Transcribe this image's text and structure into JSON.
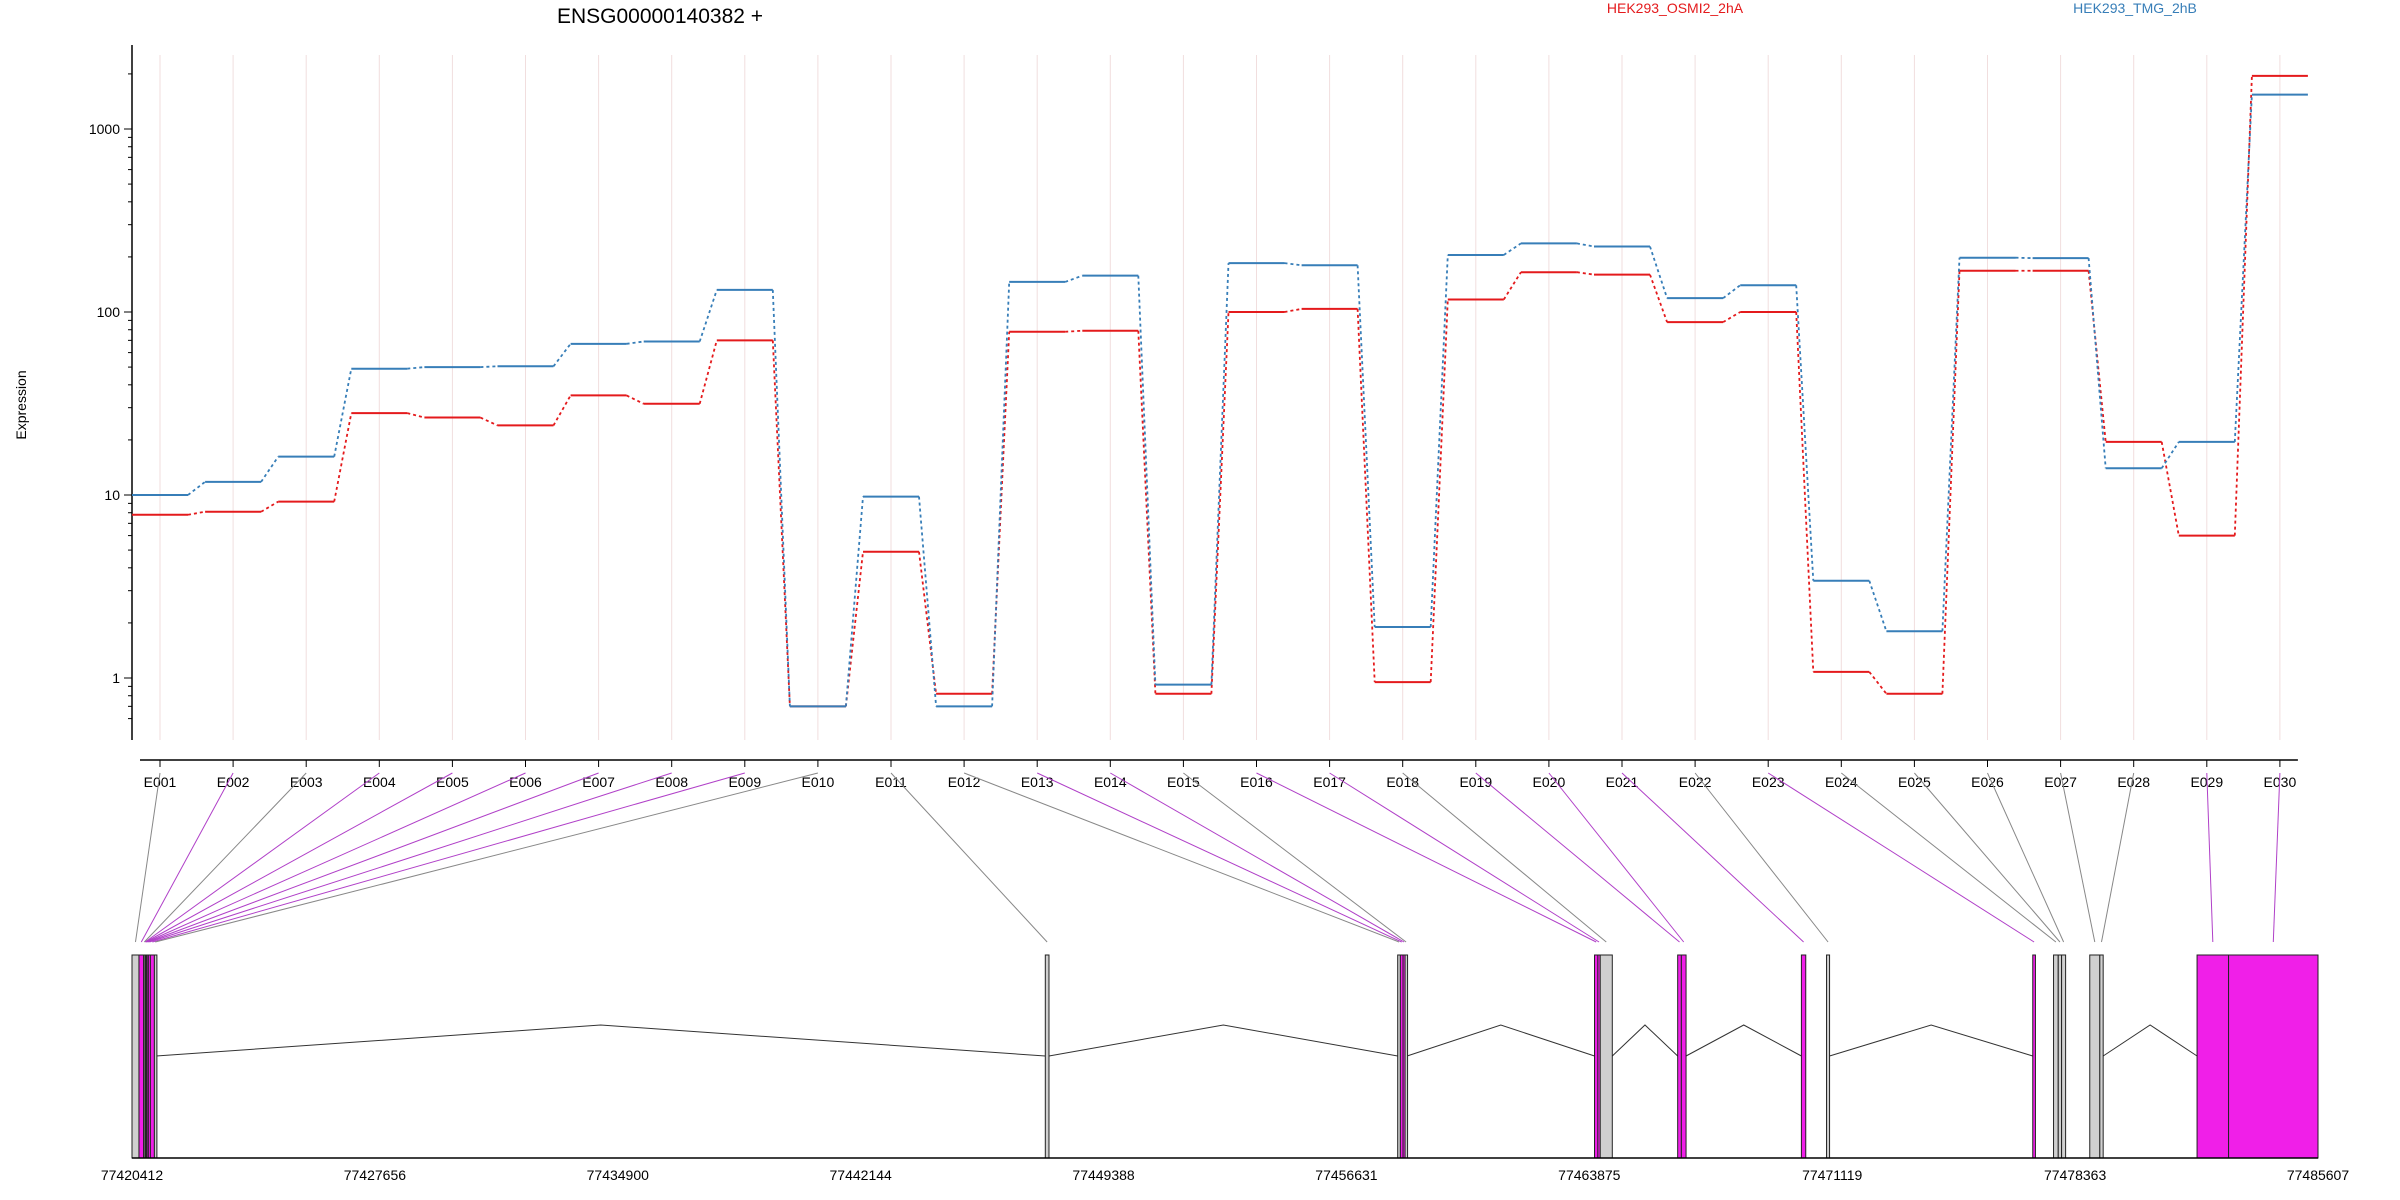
{
  "chart_data": {
    "type": "line",
    "title": "ENSG00000140382 +",
    "ylabel": "Expression",
    "yscale": "log",
    "ylim": [
      0.6,
      3000
    ],
    "yticks": [
      "1",
      "10",
      "100",
      "1000"
    ],
    "categories": [
      "E001",
      "E002",
      "E003",
      "E004",
      "E005",
      "E006",
      "E007",
      "E008",
      "E009",
      "E010",
      "E011",
      "E012",
      "E013",
      "E014",
      "E015",
      "E016",
      "E017",
      "E018",
      "E019",
      "E020",
      "E021",
      "E022",
      "E023",
      "E024",
      "E025",
      "E026",
      "E027",
      "E028",
      "E029",
      "E030"
    ],
    "series": [
      {
        "name": "HEK293_OSMI2_2hA",
        "color": "#e41a1c",
        "values": [
          7.8,
          8.1,
          9.2,
          28,
          26.5,
          24,
          35,
          31.5,
          70,
          0.7,
          4.9,
          0.82,
          78,
          79,
          0.82,
          100,
          104,
          0.95,
          117,
          165,
          160,
          88,
          100,
          1.08,
          0.82,
          168,
          168,
          19.5,
          6,
          1950
        ]
      },
      {
        "name": "HEK293_TMG_2hB",
        "color": "#377eb8",
        "values": [
          10,
          11.8,
          16.2,
          49,
          50,
          50.5,
          67,
          69,
          132,
          0.7,
          9.8,
          0.7,
          146,
          158,
          0.92,
          185,
          180,
          1.9,
          205,
          237,
          228,
          119,
          140,
          3.4,
          1.8,
          198,
          197,
          14,
          19.5,
          1540
        ]
      }
    ],
    "genomic_axis": {
      "range": [
        77420412,
        77485607
      ],
      "tick_labels": [
        "77420412",
        "77427656",
        "77434900",
        "77442144",
        "77449388",
        "77456631",
        "77463875",
        "77471119",
        "77478363",
        "77485607"
      ]
    },
    "exons": [
      {
        "id": "E001",
        "start": 77420412,
        "end": 77420620,
        "highlight": false
      },
      {
        "id": "E002",
        "start": 77420620,
        "end": 77420760,
        "highlight": true
      },
      {
        "id": "E003",
        "start": 77420760,
        "end": 77420800,
        "highlight": false
      },
      {
        "id": "E004",
        "start": 77420800,
        "end": 77420810,
        "highlight": true
      },
      {
        "id": "E005",
        "start": 77420810,
        "end": 77420830,
        "highlight": true
      },
      {
        "id": "E006",
        "start": 77420830,
        "end": 77420860,
        "highlight": true
      },
      {
        "id": "E007",
        "start": 77420860,
        "end": 77420900,
        "highlight": true
      },
      {
        "id": "E008",
        "start": 77420900,
        "end": 77420960,
        "highlight": true
      },
      {
        "id": "E009",
        "start": 77420960,
        "end": 77421080,
        "highlight": true
      },
      {
        "id": "E010",
        "start": 77421080,
        "end": 77421130,
        "highlight": false
      },
      {
        "id": "E011",
        "start": 77447650,
        "end": 77447760,
        "highlight": false
      },
      {
        "id": "E012",
        "start": 77458160,
        "end": 77458240,
        "highlight": false
      },
      {
        "id": "E013",
        "start": 77458240,
        "end": 77458320,
        "highlight": true
      },
      {
        "id": "E014",
        "start": 77458320,
        "end": 77458380,
        "highlight": true
      },
      {
        "id": "E015",
        "start": 77458380,
        "end": 77458440,
        "highlight": false
      },
      {
        "id": "E016",
        "start": 77464030,
        "end": 77464130,
        "highlight": true
      },
      {
        "id": "E017",
        "start": 77464130,
        "end": 77464200,
        "highlight": true
      },
      {
        "id": "E018",
        "start": 77464200,
        "end": 77464560,
        "highlight": false
      },
      {
        "id": "E019",
        "start": 77466510,
        "end": 77466620,
        "highlight": true
      },
      {
        "id": "E020",
        "start": 77466620,
        "end": 77466760,
        "highlight": true
      },
      {
        "id": "E021",
        "start": 77470200,
        "end": 77470330,
        "highlight": true
      },
      {
        "id": "E022",
        "start": 77470950,
        "end": 77471040,
        "highlight": false
      },
      {
        "id": "E023",
        "start": 77477100,
        "end": 77477180,
        "highlight": true
      },
      {
        "id": "E024",
        "start": 77477720,
        "end": 77477860,
        "highlight": false
      },
      {
        "id": "E025",
        "start": 77477860,
        "end": 77477960,
        "highlight": false
      },
      {
        "id": "E026",
        "start": 77477960,
        "end": 77478080,
        "highlight": false
      },
      {
        "id": "E027",
        "start": 77478800,
        "end": 77479100,
        "highlight": false
      },
      {
        "id": "E028",
        "start": 77479100,
        "end": 77479200,
        "highlight": false
      },
      {
        "id": "E029",
        "start": 77482000,
        "end": 77482940,
        "highlight": true
      },
      {
        "id": "E030",
        "start": 77482940,
        "end": 77485607,
        "highlight": true
      }
    ],
    "grid": "vertical-light",
    "legend": "top-right"
  }
}
